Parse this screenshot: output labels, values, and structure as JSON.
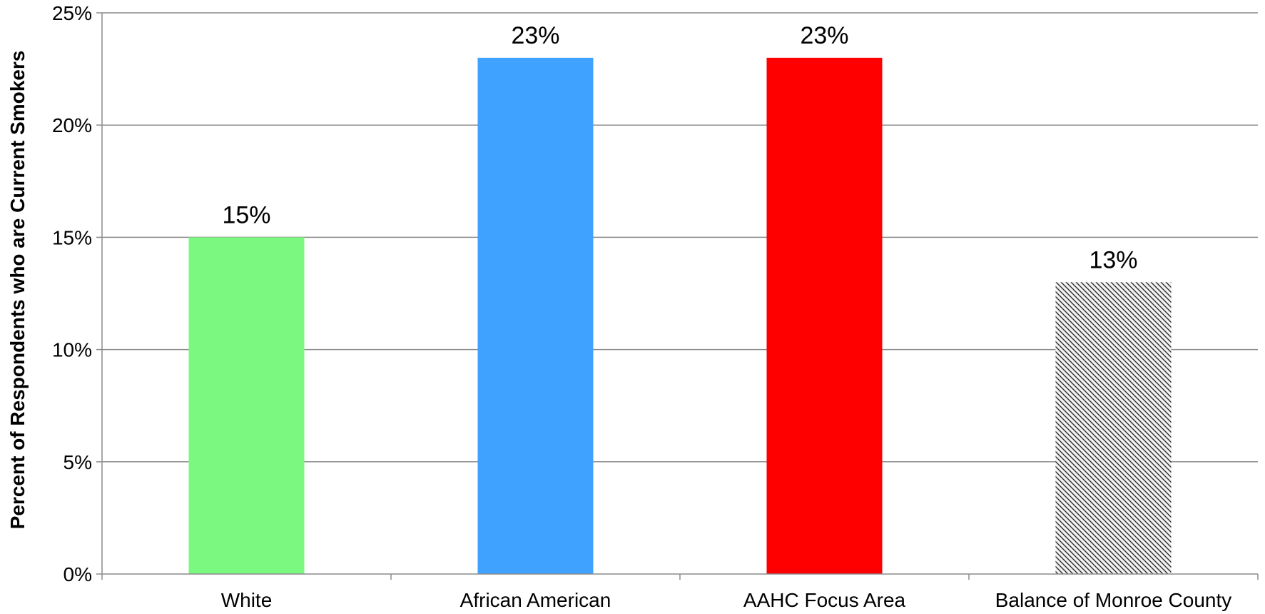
{
  "chart_data": {
    "type": "bar",
    "title": "",
    "xlabel": "",
    "ylabel": "Percent of Respondents who are Current Smokers",
    "categories": [
      "White",
      "African American",
      "AAHC Focus Area",
      "Balance of Monroe County"
    ],
    "values": [
      15,
      23,
      23,
      13
    ],
    "data_labels": [
      "15%",
      "23%",
      "23%",
      "13%"
    ],
    "bar_colors": [
      "#7af87f",
      "#3fa2ff",
      "#ff0000",
      "hatched"
    ],
    "ylim": [
      0,
      25
    ],
    "yticks": [
      0,
      5,
      10,
      15,
      20,
      25
    ],
    "ytick_labels": [
      "0%",
      "5%",
      "10%",
      "15%",
      "20%",
      "25%"
    ],
    "grid": true,
    "legend": "none"
  }
}
